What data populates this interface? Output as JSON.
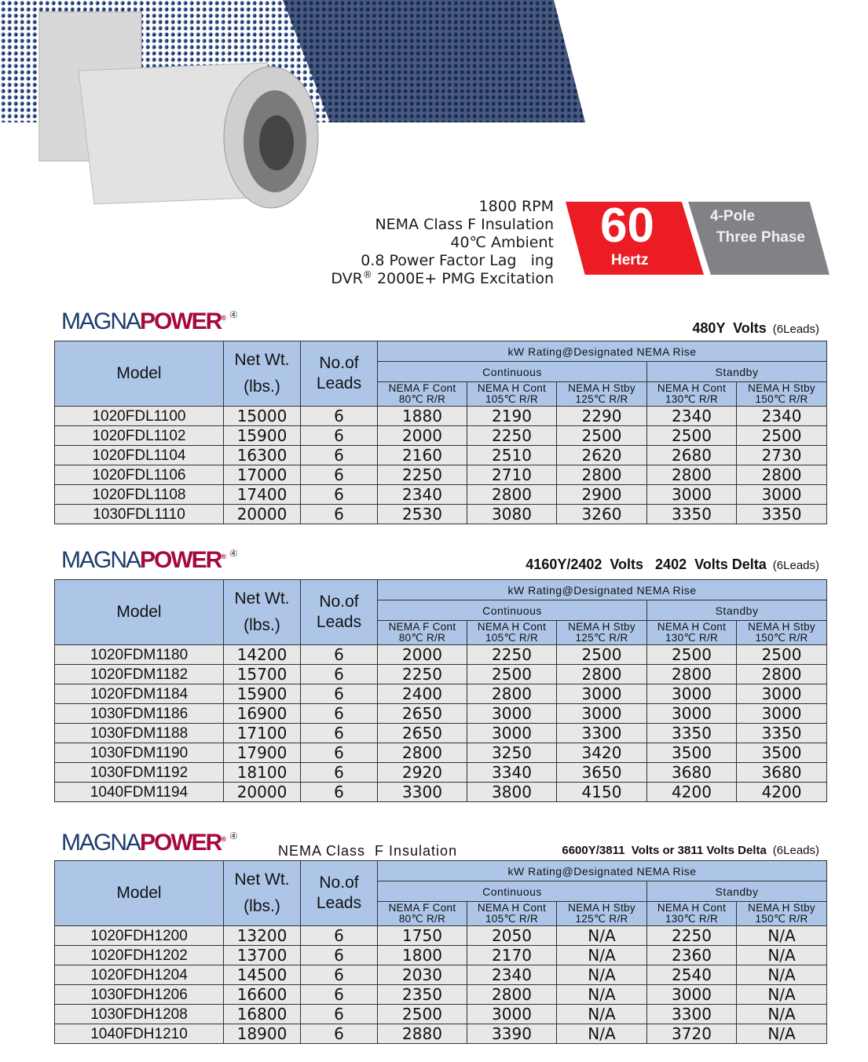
{
  "specs": {
    "lines": [
      "1800 RPM",
      "NEMA Class F Insulation",
      "40℃ Ambient",
      "0.8 Power Factor Lag   ing",
      "2000E+ PMG Excitation"
    ],
    "dvr": "DVR",
    "reg": "®"
  },
  "badge": {
    "frequency": "60",
    "unit": "Hertz",
    "pole": "4-Pole",
    "phase": "Three Phase",
    "colors": {
      "red": "#ec1c24",
      "gray": "#808285"
    }
  },
  "logo": {
    "part1": "MAGNA",
    "part2": "POWER",
    "reg": "®",
    "mark": "④"
  },
  "headers": {
    "model": "Model",
    "weight1": "Net Wt.",
    "weight2": "(lbs.)",
    "leads1": "No.of",
    "leads2": "Leads",
    "rating": "kW Rating@Designated NEMA Rise",
    "continuous": "Continuous",
    "standby": "Standby",
    "cols": [
      [
        "NEMA F Cont",
        "80℃ R/R"
      ],
      [
        "NEMA H Cont",
        "105℃ R/R"
      ],
      [
        "NEMA H Stby",
        "125℃ R/R"
      ],
      [
        "NEMA H Cont",
        "130℃ R/R"
      ],
      [
        "NEMA H Stby",
        "150℃ R/R"
      ]
    ]
  },
  "tables": [
    {
      "voltage": "480Y  Volts",
      "leads_note": "(6Leads)",
      "rows": [
        [
          "1020FDL1100",
          "15000",
          "6",
          "1880",
          "2190",
          "2290",
          "2340",
          "2340"
        ],
        [
          "1020FDL1102",
          "15900",
          "6",
          "2000",
          "2250",
          "2500",
          "2500",
          "2500"
        ],
        [
          "1020FDL1104",
          "16300",
          "6",
          "2160",
          "2510",
          "2620",
          "2680",
          "2730"
        ],
        [
          "1020FDL1106",
          "17000",
          "6",
          "2250",
          "2710",
          "2800",
          "2800",
          "2800"
        ],
        [
          "1020FDL1108",
          "17400",
          "6",
          "2340",
          "2800",
          "2900",
          "3000",
          "3000"
        ],
        [
          "1030FDL1110",
          "20000",
          "6",
          "2530",
          "3080",
          "3260",
          "3350",
          "3350"
        ]
      ]
    },
    {
      "voltage": "4160Y/2402  Volts   2402  Volts Delta",
      "leads_note": "(6Leads)",
      "rows": [
        [
          "1020FDM1180",
          "14200",
          "6",
          "2000",
          "2250",
          "2500",
          "2500",
          "2500"
        ],
        [
          "1020FDM1182",
          "15700",
          "6",
          "2250",
          "2500",
          "2800",
          "2800",
          "2800"
        ],
        [
          "1020FDM1184",
          "15900",
          "6",
          "2400",
          "2800",
          "3000",
          "3000",
          "3000"
        ],
        [
          "1030FDM1186",
          "16900",
          "6",
          "2650",
          "3000",
          "3000",
          "3000",
          "3000"
        ],
        [
          "1030FDM1188",
          "17100",
          "6",
          "2650",
          "3000",
          "3300",
          "3350",
          "3350"
        ],
        [
          "1030FDM1190",
          "17900",
          "6",
          "2800",
          "3250",
          "3420",
          "3500",
          "3500"
        ],
        [
          "1030FDM1192",
          "18100",
          "6",
          "2920",
          "3340",
          "3650",
          "3680",
          "3680"
        ],
        [
          "1040FDM1194",
          "20000",
          "6",
          "3300",
          "3800",
          "4150",
          "4200",
          "4200"
        ]
      ]
    },
    {
      "insulation": "NEMA Class  F Insulation",
      "voltage": "6600Y/3811  Volts or 3811 Volts Delta",
      "leads_note": "(6Leads)",
      "rows": [
        [
          "1020FDH1200",
          "13200",
          "6",
          "1750",
          "2050",
          "N/A",
          "2250",
          "N/A"
        ],
        [
          "1020FDH1202",
          "13700",
          "6",
          "1800",
          "2170",
          "N/A",
          "2360",
          "N/A"
        ],
        [
          "1020FDH1204",
          "14500",
          "6",
          "2030",
          "2340",
          "N/A",
          "2540",
          "N/A"
        ],
        [
          "1030FDH1206",
          "16600",
          "6",
          "2350",
          "2800",
          "N/A",
          "3000",
          "N/A"
        ],
        [
          "1030FDH1208",
          "16800",
          "6",
          "2500",
          "3000",
          "N/A",
          "3300",
          "N/A"
        ],
        [
          "1040FDH1210",
          "18900",
          "6",
          "2880",
          "3390",
          "N/A",
          "3720",
          "N/A"
        ]
      ]
    }
  ]
}
